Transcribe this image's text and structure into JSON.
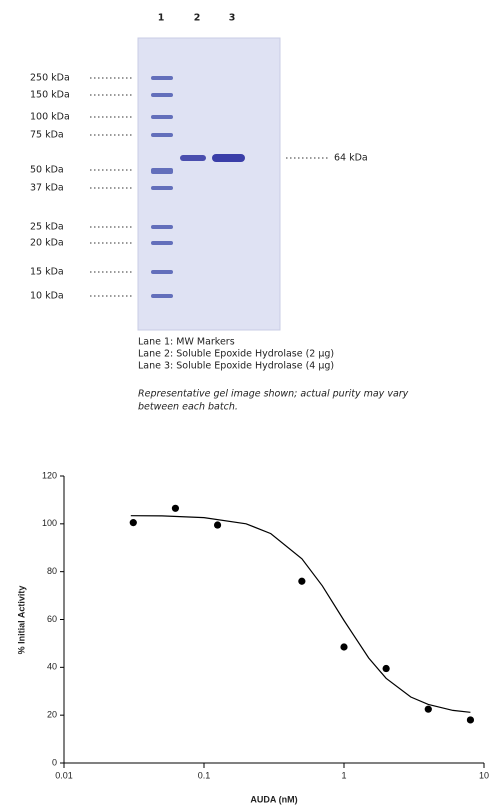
{
  "gel": {
    "lanes": [
      "1",
      "2",
      "3"
    ],
    "markers": [
      "250 kDa",
      "150 kDa",
      "100 kDa",
      "75 kDa",
      "50 kDa",
      "37 kDa",
      "25 kDa",
      "20 kDa",
      "15 kDa",
      "10 kDa"
    ],
    "band_label": "64 kDa",
    "legend": [
      "Lane 1: MW Markers",
      "Lane 2: Soluble Epoxide Hydrolase (2 µg)",
      "Lane 3: Soluble Epoxide Hydrolase (4 µg)"
    ],
    "note": [
      "Representative gel image shown; actual purity may vary",
      "between each batch."
    ]
  },
  "chart_data": {
    "type": "scatter",
    "xlabel": "AUDA (nM)",
    "ylabel": "% Initial Activity",
    "log_x": true,
    "xlim": [
      0.01,
      10
    ],
    "xticks": [
      0.01,
      0.1,
      1,
      10
    ],
    "ylim": [
      0,
      120
    ],
    "yticks": [
      0,
      20,
      40,
      60,
      80,
      100,
      120
    ],
    "x": [
      0.03125,
      0.0625,
      0.125,
      0.5,
      1,
      2,
      4,
      8
    ],
    "values": [
      100.5,
      106.5,
      99.5,
      76,
      48.5,
      39.5,
      22.5,
      18
    ],
    "color": "#000000",
    "curve": {
      "x": [
        0.03,
        0.05,
        0.1,
        0.2,
        0.3,
        0.5,
        0.7,
        1,
        1.5,
        2,
        3,
        4,
        6,
        8
      ],
      "values": [
        103.4,
        103.3,
        102.6,
        100,
        95.9,
        85.4,
        74.1,
        59.6,
        43.9,
        35.4,
        27.6,
        24.5,
        22,
        21.2
      ]
    }
  }
}
